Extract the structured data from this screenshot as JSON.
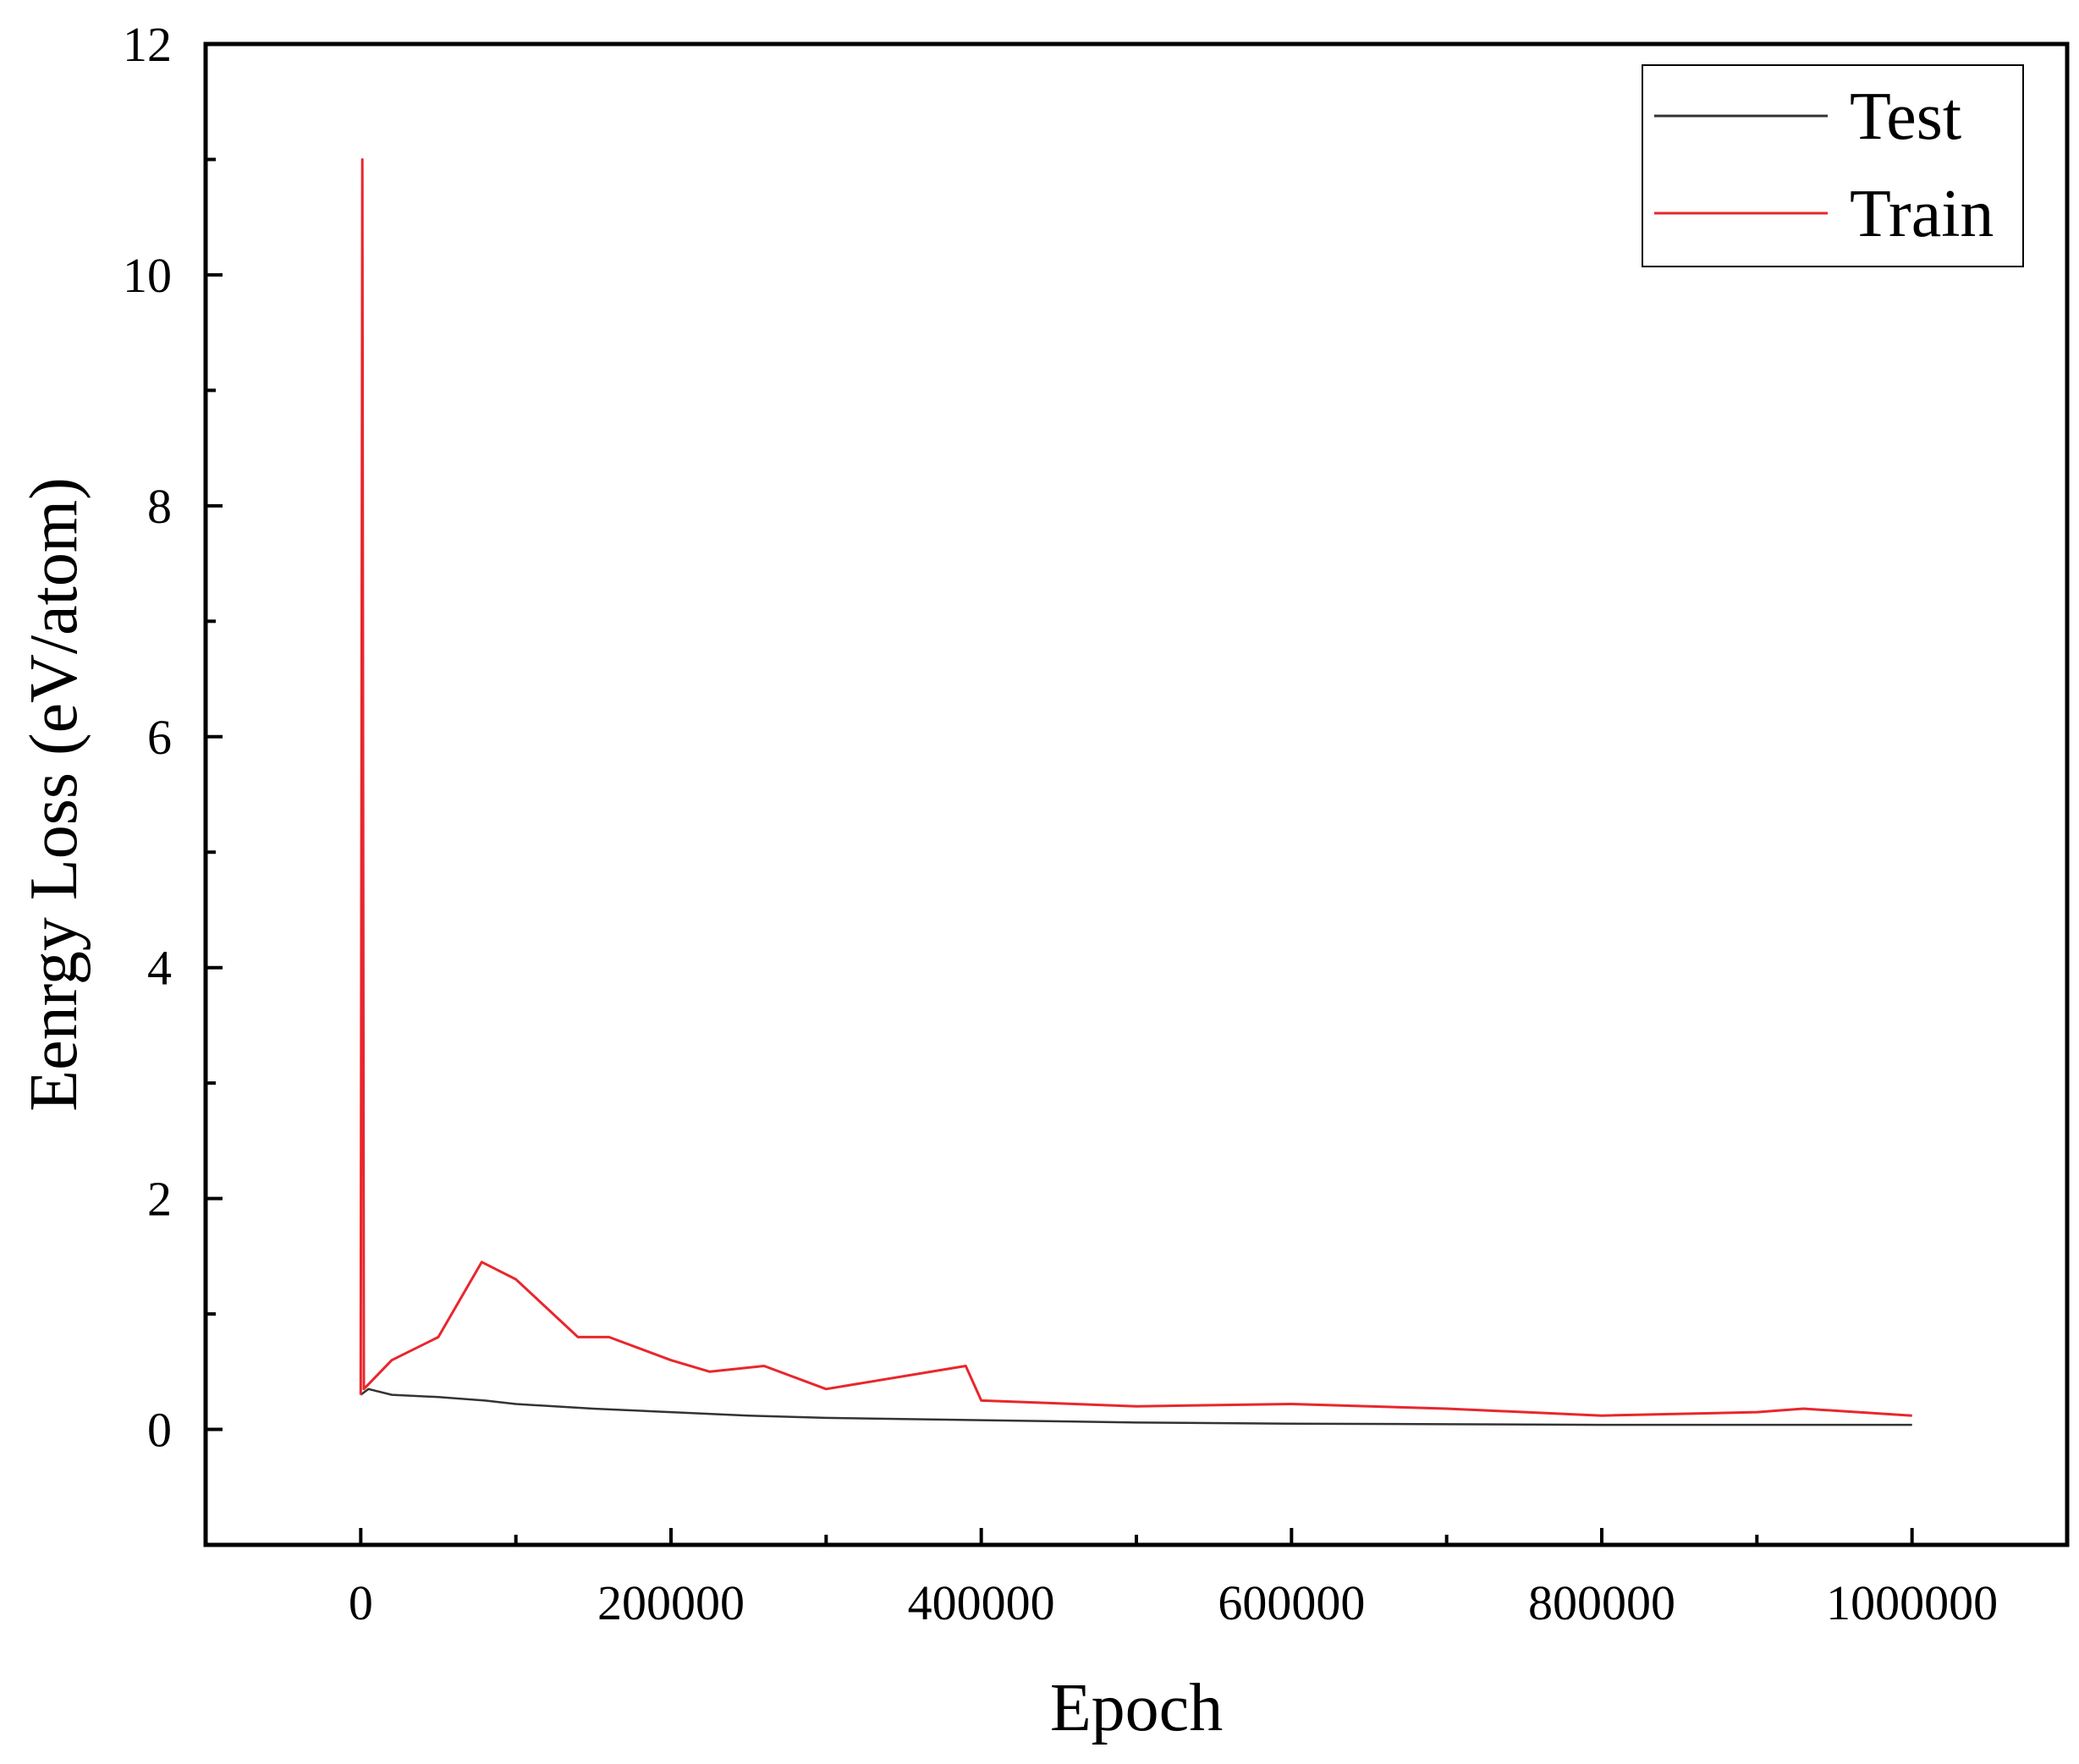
{
  "chart_data": {
    "type": "line",
    "xlabel": "Epoch",
    "ylabel": "Eenrgy Loss (eV/atom)",
    "xlim": [
      -100000,
      1100000
    ],
    "ylim": [
      -1,
      12
    ],
    "x_ticks": [
      0,
      200000,
      400000,
      600000,
      800000,
      1000000
    ],
    "x_tick_labels": [
      "0",
      "200000",
      "400000",
      "600000",
      "800000",
      "1000000"
    ],
    "y_ticks": [
      0,
      2,
      4,
      6,
      8,
      10,
      12
    ],
    "y_tick_labels": [
      "0",
      "2",
      "4",
      "6",
      "8",
      "10",
      "12"
    ],
    "grid": false,
    "legend_position": "top-right",
    "series": [
      {
        "name": "Test",
        "color": "#333333",
        "points": [
          [
            0,
            0.3
          ],
          [
            5000,
            0.35
          ],
          [
            20000,
            0.3
          ],
          [
            50000,
            0.28
          ],
          [
            80000,
            0.25
          ],
          [
            100000,
            0.22
          ],
          [
            150000,
            0.18
          ],
          [
            200000,
            0.15
          ],
          [
            250000,
            0.12
          ],
          [
            300000,
            0.1
          ],
          [
            400000,
            0.08
          ],
          [
            500000,
            0.06
          ],
          [
            600000,
            0.05
          ],
          [
            700000,
            0.045
          ],
          [
            800000,
            0.04
          ],
          [
            900000,
            0.04
          ],
          [
            1000000,
            0.04
          ]
        ]
      },
      {
        "name": "Train",
        "color": "#e8272c",
        "points": [
          [
            0,
            0.3
          ],
          [
            1000,
            11.0
          ],
          [
            2000,
            0.35
          ],
          [
            20000,
            0.6
          ],
          [
            50000,
            0.8
          ],
          [
            78000,
            1.45
          ],
          [
            100000,
            1.3
          ],
          [
            140000,
            0.8
          ],
          [
            160000,
            0.8
          ],
          [
            200000,
            0.6
          ],
          [
            225000,
            0.5
          ],
          [
            260000,
            0.55
          ],
          [
            300000,
            0.35
          ],
          [
            390000,
            0.55
          ],
          [
            400000,
            0.25
          ],
          [
            500000,
            0.2
          ],
          [
            600000,
            0.22
          ],
          [
            700000,
            0.18
          ],
          [
            800000,
            0.12
          ],
          [
            900000,
            0.15
          ],
          [
            930000,
            0.18
          ],
          [
            1000000,
            0.12
          ]
        ]
      }
    ]
  }
}
